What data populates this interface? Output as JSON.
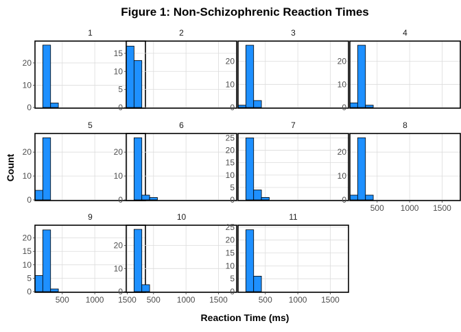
{
  "chart_data": {
    "type": "bar",
    "title": "Figure 1: Non-Schizophrenic Reaction Times",
    "xlabel": "Reaction Time (ms)",
    "ylabel": "Count",
    "xlim": [
      80,
      1780
    ],
    "bin_edges": [
      80,
      200,
      320,
      440,
      560,
      680,
      800
    ],
    "x_ticks": [
      500,
      1000,
      1500
    ],
    "x_tick_labels": [
      "500",
      "1000",
      "1500"
    ],
    "grid": true,
    "fill_color": "#1E90FF",
    "edge_color": "#000000",
    "panels": [
      {
        "label": "1",
        "counts": [
          0,
          28,
          2,
          0,
          0,
          0
        ],
        "y_ticks": [
          0,
          10,
          20
        ],
        "ymax": 29.5
      },
      {
        "label": "2",
        "counts": [
          17,
          13,
          0,
          0,
          0,
          0
        ],
        "y_ticks": [
          0,
          5,
          10,
          15
        ],
        "ymax": 18.2
      },
      {
        "label": "3",
        "counts": [
          1,
          27,
          3,
          0,
          0,
          0
        ],
        "y_ticks": [
          0,
          10,
          20
        ],
        "ymax": 28.5
      },
      {
        "label": "4",
        "counts": [
          2,
          27,
          1,
          0,
          0,
          0
        ],
        "y_ticks": [
          0,
          10,
          20
        ],
        "ymax": 28.5
      },
      {
        "label": "5",
        "counts": [
          4,
          26,
          0,
          0,
          0,
          0
        ],
        "y_ticks": [
          0,
          10,
          20
        ],
        "ymax": 27.5
      },
      {
        "label": "6",
        "counts": [
          0,
          26,
          2,
          1,
          0,
          0
        ],
        "y_ticks": [
          0,
          10,
          20
        ],
        "ymax": 27.5
      },
      {
        "label": "7",
        "counts": [
          0,
          25,
          4,
          1,
          0,
          0
        ],
        "y_ticks": [
          0,
          5,
          10,
          15,
          20,
          25
        ],
        "ymax": 26.5
      },
      {
        "label": "8",
        "counts": [
          2,
          26,
          2,
          0,
          0,
          0
        ],
        "y_ticks": [
          0,
          10,
          20
        ],
        "ymax": 27.5
      },
      {
        "label": "9",
        "counts": [
          6,
          23,
          1,
          0,
          0,
          0
        ],
        "y_ticks": [
          0,
          5,
          10,
          15,
          20
        ],
        "ymax": 24.5
      },
      {
        "label": "10",
        "counts": [
          0,
          27,
          3,
          0,
          0,
          0
        ],
        "y_ticks": [
          0,
          10,
          20
        ],
        "ymax": 28.5
      },
      {
        "label": "11",
        "counts": [
          0,
          24,
          6,
          0,
          0,
          0
        ],
        "y_ticks": [
          0,
          5,
          10,
          15,
          20,
          25
        ],
        "ymax": 25.5
      }
    ]
  }
}
